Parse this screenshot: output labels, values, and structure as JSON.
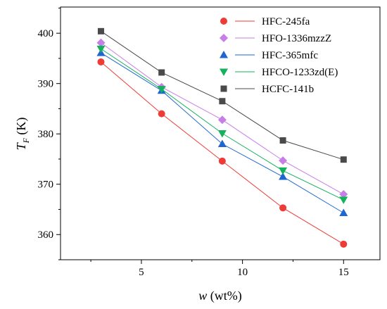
{
  "chart_data": {
    "type": "line",
    "x": [
      3,
      6,
      9,
      12,
      15
    ],
    "xlim": [
      1.0,
      16.8
    ],
    "ylim": [
      355.0,
      405.2
    ],
    "xticks": [
      5,
      10,
      15
    ],
    "xminor": [
      2.5,
      7.5,
      12.5
    ],
    "yticks": [
      360,
      370,
      380,
      390,
      400
    ],
    "yminor": [
      355,
      365,
      375,
      385,
      395,
      405
    ],
    "xlabel": {
      "var": "w",
      "unit": "(wt%)"
    },
    "ylabel": {
      "var": "T",
      "sub": "F",
      "unit": "(K)"
    },
    "grid": false,
    "legend": "top-right",
    "series": [
      {
        "name": "HFC-245fa",
        "marker": "circle",
        "color": "#ef3b36",
        "values": [
          394.3,
          384.0,
          374.6,
          365.3,
          358.1
        ]
      },
      {
        "name": "HFO-1336mzzZ",
        "marker": "diamond",
        "color": "#c77ee6",
        "values": [
          398.1,
          389.3,
          382.8,
          374.7,
          368.0
        ]
      },
      {
        "name": "HFC-365mfc",
        "marker": "triangle-up",
        "color": "#1e66d0",
        "values": [
          396.1,
          388.6,
          378.0,
          371.5,
          364.3
        ]
      },
      {
        "name": "HFCO-1233zd(E)",
        "marker": "triangle-down",
        "color": "#15b25c",
        "values": [
          396.9,
          388.9,
          380.1,
          372.7,
          366.9
        ]
      },
      {
        "name": "HCFC-141b",
        "marker": "square",
        "color": "#4a4a4a",
        "values": [
          400.4,
          392.2,
          386.5,
          378.7,
          374.9
        ]
      }
    ]
  }
}
